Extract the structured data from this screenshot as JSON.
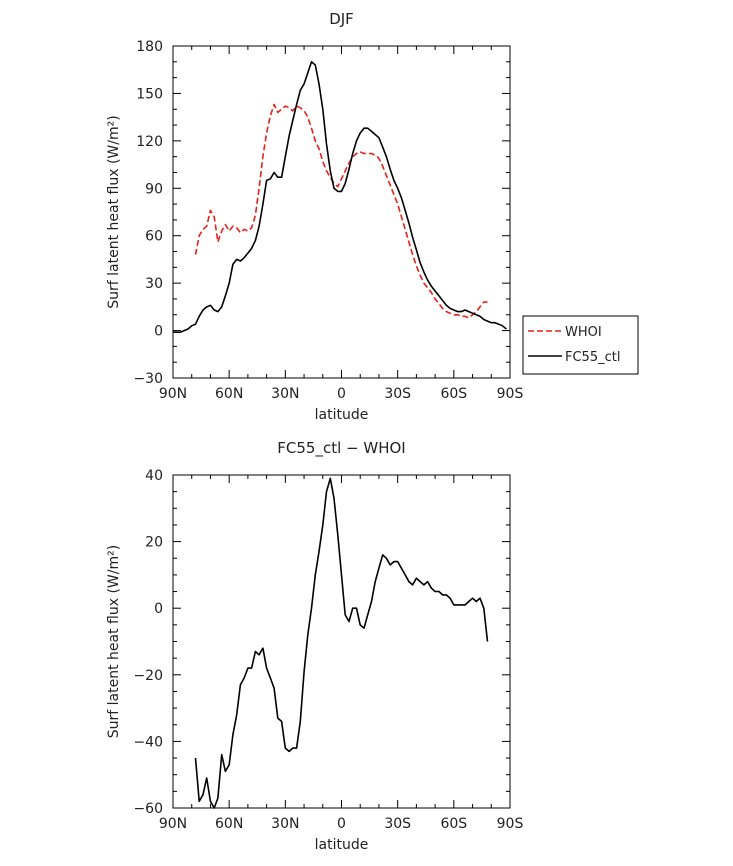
{
  "chart_data": [
    {
      "type": "line",
      "title": "DJF",
      "xlabel": "latitude",
      "ylabel": "Surf latent heat flux (W/m²)",
      "xlim": [
        90,
        -90
      ],
      "ylim": [
        -30,
        180
      ],
      "xticks": [
        90,
        60,
        30,
        0,
        -30,
        -60,
        -90
      ],
      "xtick_labels": [
        "90N",
        "60N",
        "30N",
        "0",
        "30S",
        "60S",
        "90S"
      ],
      "yticks": [
        -30,
        0,
        30,
        60,
        90,
        120,
        150,
        180
      ],
      "ytick_labels": [
        "−30",
        "0",
        "30",
        "60",
        "90",
        "120",
        "150",
        "180"
      ],
      "legend_position": "outside-right",
      "series": [
        {
          "name": "WHOI",
          "color": "#e8211c",
          "dash": "dashed",
          "x": [
            78,
            76,
            74,
            72,
            70,
            68,
            66,
            64,
            62,
            60,
            58,
            56,
            54,
            52,
            50,
            48,
            46,
            44,
            42,
            40,
            38,
            36,
            34,
            32,
            30,
            28,
            26,
            24,
            22,
            20,
            18,
            16,
            14,
            12,
            10,
            8,
            6,
            4,
            2,
            0,
            -2,
            -4,
            -6,
            -8,
            -10,
            -12,
            -14,
            -16,
            -18,
            -20,
            -22,
            -24,
            -26,
            -28,
            -30,
            -32,
            -34,
            -36,
            -38,
            -40,
            -42,
            -44,
            -46,
            -48,
            -50,
            -52,
            -54,
            -56,
            -58,
            -60,
            -62,
            -64,
            -66,
            -68,
            -70,
            -72,
            -74,
            -76,
            -78
          ],
          "y": [
            48,
            60,
            64,
            66,
            76,
            72,
            56,
            63,
            67,
            63,
            66,
            65,
            62,
            64,
            63,
            65,
            73,
            90,
            110,
            125,
            136,
            143,
            138,
            140,
            142,
            141,
            139,
            142,
            141,
            139,
            135,
            128,
            120,
            115,
            107,
            101,
            97,
            93,
            91,
            96,
            101,
            106,
            110,
            112,
            113,
            112,
            112,
            112,
            111,
            109,
            104,
            98,
            92,
            86,
            80,
            72,
            64,
            56,
            48,
            41,
            35,
            30,
            27,
            24,
            20,
            17,
            14,
            12,
            11,
            10,
            10,
            9,
            9,
            8,
            10,
            12,
            15,
            18,
            18
          ]
        },
        {
          "name": "FC55_ctl",
          "color": "#000000",
          "dash": "solid",
          "x": [
            90,
            88,
            86,
            84,
            82,
            80,
            78,
            76,
            74,
            72,
            70,
            68,
            66,
            64,
            62,
            60,
            58,
            56,
            54,
            52,
            50,
            48,
            46,
            44,
            42,
            40,
            38,
            36,
            34,
            32,
            30,
            28,
            26,
            24,
            22,
            20,
            18,
            16,
            14,
            12,
            10,
            8,
            6,
            4,
            2,
            0,
            -2,
            -4,
            -6,
            -8,
            -10,
            -12,
            -14,
            -16,
            -18,
            -20,
            -22,
            -24,
            -26,
            -28,
            -30,
            -32,
            -34,
            -36,
            -38,
            -40,
            -42,
            -44,
            -46,
            -48,
            -50,
            -52,
            -54,
            -56,
            -58,
            -60,
            -62,
            -64,
            -66,
            -68,
            -70,
            -72,
            -74,
            -76,
            -78,
            -80,
            -82,
            -84,
            -86,
            -88
          ],
          "y": [
            -1,
            -1,
            -1,
            0,
            1,
            3,
            4,
            9,
            13,
            15,
            16,
            13,
            12,
            15,
            22,
            30,
            42,
            45,
            44,
            46,
            49,
            52,
            57,
            66,
            80,
            95,
            96,
            100,
            97,
            97,
            110,
            123,
            133,
            143,
            152,
            156,
            163,
            170,
            168,
            156,
            140,
            118,
            101,
            90,
            88,
            88,
            93,
            102,
            112,
            120,
            125,
            128,
            128,
            126,
            124,
            122,
            116,
            110,
            102,
            95,
            90,
            84,
            76,
            68,
            59,
            51,
            43,
            37,
            32,
            28,
            25,
            22,
            19,
            16,
            14,
            13,
            12,
            12,
            13,
            12,
            11,
            10,
            9,
            7,
            6,
            5,
            5,
            4,
            3,
            1
          ]
        }
      ]
    },
    {
      "type": "line",
      "title": "FC55_ctl − WHOI",
      "xlabel": "latitude",
      "ylabel": "Surf latent heat flux (W/m²)",
      "xlim": [
        90,
        -90
      ],
      "ylim": [
        -60,
        40
      ],
      "xticks": [
        90,
        60,
        30,
        0,
        -30,
        -60,
        -90
      ],
      "xtick_labels": [
        "90N",
        "60N",
        "30N",
        "0",
        "30S",
        "60S",
        "90S"
      ],
      "yticks": [
        -60,
        -40,
        -20,
        0,
        20,
        40
      ],
      "ytick_labels": [
        "−60",
        "−40",
        "−20",
        "0",
        "20",
        "40"
      ],
      "series": [
        {
          "color": "#000000",
          "dash": "solid",
          "x": [
            78,
            76,
            74,
            72,
            70,
            68,
            66,
            64,
            62,
            60,
            58,
            56,
            54,
            52,
            50,
            48,
            46,
            44,
            42,
            40,
            38,
            36,
            34,
            32,
            30,
            28,
            26,
            24,
            22,
            20,
            18,
            16,
            14,
            12,
            10,
            8,
            6,
            4,
            2,
            0,
            -2,
            -4,
            -6,
            -8,
            -10,
            -12,
            -14,
            -16,
            -18,
            -20,
            -22,
            -24,
            -26,
            -28,
            -30,
            -32,
            -34,
            -36,
            -38,
            -40,
            -42,
            -44,
            -46,
            -48,
            -50,
            -52,
            -54,
            -56,
            -58,
            -60,
            -62,
            -64,
            -66,
            -68,
            -70,
            -72,
            -74,
            -76,
            -78
          ],
          "y": [
            -45,
            -58,
            -56,
            -51,
            -58,
            -60,
            -57,
            -44,
            -49,
            -47,
            -38,
            -32,
            -23,
            -21,
            -18,
            -18,
            -13,
            -14,
            -12,
            -18,
            -21,
            -24,
            -33,
            -34,
            -42,
            -43,
            -42,
            -42,
            -34,
            -19,
            -8,
            0,
            10,
            17,
            25,
            35,
            39,
            33,
            22,
            10,
            -2,
            -4,
            0,
            0,
            -5,
            -6,
            -2,
            2,
            8,
            12,
            16,
            15,
            13,
            14,
            14,
            12,
            10,
            8,
            7,
            9,
            8,
            7,
            8,
            6,
            5,
            5,
            4,
            4,
            3,
            1,
            1,
            1,
            1,
            2,
            3,
            2,
            3,
            0,
            -10
          ]
        }
      ]
    }
  ]
}
